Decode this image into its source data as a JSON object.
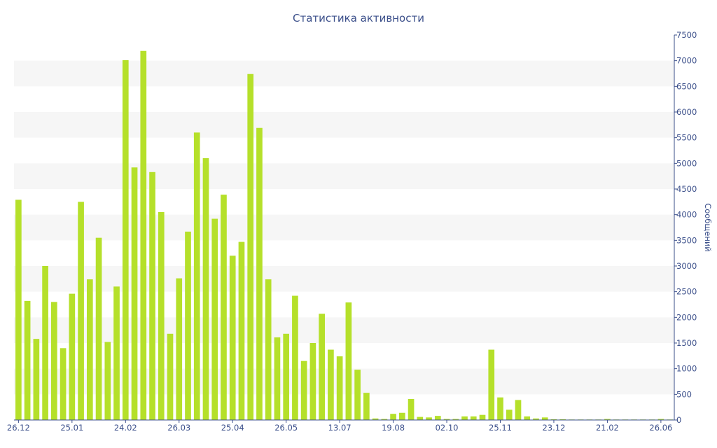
{
  "chart_data": {
    "type": "bar",
    "title": "Статистика активности",
    "xlabel": "",
    "ylabel": "Сообщений",
    "ylim": [
      0,
      7500
    ],
    "y_ticks": [
      0,
      500,
      1000,
      1500,
      2000,
      2500,
      3000,
      3500,
      4000,
      4500,
      5000,
      5500,
      6000,
      6500,
      7000,
      7500
    ],
    "x_tick_labels": [
      {
        "label": "26.12",
        "index": 0
      },
      {
        "label": "25.01",
        "index": 6
      },
      {
        "label": "24.02",
        "index": 12
      },
      {
        "label": "26.03",
        "index": 18
      },
      {
        "label": "25.04",
        "index": 24
      },
      {
        "label": "26.05",
        "index": 30
      },
      {
        "label": "13.07",
        "index": 36
      },
      {
        "label": "19.08",
        "index": 42
      },
      {
        "label": "02.10",
        "index": 48
      },
      {
        "label": "25.11",
        "index": 54
      },
      {
        "label": "23.12",
        "index": 60
      },
      {
        "label": "21.02",
        "index": 66
      },
      {
        "label": "26.06",
        "index": 72
      }
    ],
    "bar_color": "#b5e02a",
    "band_color": "#f6f6f6",
    "axis_color": "#3b4f8a",
    "grid": "alternating horizontal bands",
    "y_axis_position": "right",
    "values": [
      4290,
      2320,
      1580,
      3000,
      2300,
      1400,
      2460,
      4250,
      2740,
      3550,
      1520,
      2600,
      7010,
      4920,
      7190,
      4830,
      4050,
      1680,
      2760,
      3670,
      5600,
      5100,
      3920,
      4390,
      3200,
      3470,
      6740,
      5690,
      2740,
      1610,
      1680,
      2420,
      1150,
      1500,
      2070,
      1370,
      1240,
      2290,
      980,
      530,
      30,
      20,
      120,
      140,
      410,
      60,
      50,
      80,
      20,
      20,
      70,
      70,
      100,
      1370,
      440,
      200,
      390,
      70,
      30,
      50,
      15,
      15,
      10,
      10,
      10,
      10,
      20,
      10,
      10,
      10,
      10,
      10,
      20,
      10
    ]
  }
}
